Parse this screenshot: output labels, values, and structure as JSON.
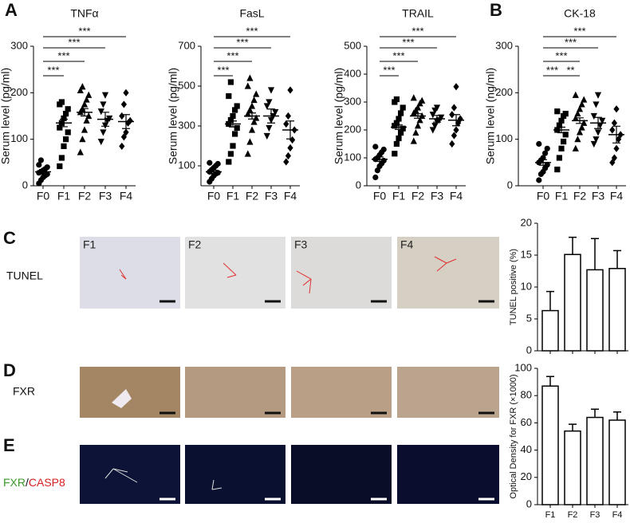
{
  "panel_labels": [
    "A",
    "B",
    "C",
    "D",
    "E"
  ],
  "image_rows": [
    {
      "label": "TUNEL",
      "tiles": [
        "F1",
        "F2",
        "F3",
        "F4"
      ]
    },
    {
      "label": "FXR"
    },
    {
      "label_parts": [
        "FXR",
        "/",
        "CASP8"
      ]
    }
  ],
  "chart_data": [
    {
      "type": "dot",
      "title": "TNFα",
      "ylabel": "Serum level (pg/ml)",
      "ylim": [
        0,
        300
      ],
      "yticks": [
        0,
        100,
        200,
        300
      ],
      "groups": [
        {
          "name": "F0",
          "marker": "circle",
          "points": [
            5,
            12,
            18,
            22,
            25,
            28,
            30,
            33,
            36,
            40,
            45,
            55
          ],
          "mean": 30,
          "sem": 5
        },
        {
          "name": "F1",
          "marker": "square",
          "points": [
            42,
            60,
            85,
            100,
            115,
            125,
            135,
            145,
            155,
            165,
            175,
            180
          ],
          "mean": 135,
          "sem": 8
        },
        {
          "name": "F2",
          "marker": "triangle-up",
          "points": [
            72,
            100,
            120,
            140,
            150,
            158,
            165,
            175,
            185,
            195,
            205,
            213
          ],
          "mean": 158,
          "sem": 8
        },
        {
          "name": "F3",
          "marker": "triangle-down",
          "points": [
            95,
            115,
            130,
            140,
            145,
            160,
            175,
            195
          ],
          "mean": 143,
          "sem": 15
        },
        {
          "name": "F4",
          "marker": "diamond",
          "points": [
            85,
            105,
            115,
            135,
            140,
            150,
            175,
            200
          ],
          "mean": 138,
          "sem": 15
        }
      ],
      "comparisons": [
        {
          "from": "F0",
          "to": "F1",
          "label": "***"
        },
        {
          "from": "F0",
          "to": "F2",
          "label": "***"
        },
        {
          "from": "F0",
          "to": "F3",
          "label": "***"
        },
        {
          "from": "F0",
          "to": "F4",
          "label": "***"
        }
      ]
    },
    {
      "type": "dot",
      "title": "FasL",
      "ylabel": "Serum level (pg/ml)",
      "ylim": [
        0,
        700
      ],
      "yticks": [
        100,
        300,
        500,
        700
      ],
      "groups": [
        {
          "name": "F0",
          "marker": "circle",
          "points": [
            20,
            35,
            50,
            60,
            65,
            70,
            80,
            90,
            100,
            110,
            115
          ],
          "mean": 70,
          "sem": 8
        },
        {
          "name": "F1",
          "marker": "square",
          "points": [
            120,
            160,
            200,
            260,
            290,
            310,
            330,
            350,
            380,
            400,
            450,
            520
          ],
          "mean": 310,
          "sem": 15
        },
        {
          "name": "F2",
          "marker": "triangle-up",
          "points": [
            160,
            220,
            280,
            320,
            340,
            360,
            380,
            400,
            430,
            460,
            500,
            540
          ],
          "mean": 350,
          "sem": 15
        },
        {
          "name": "F3",
          "marker": "triangle-down",
          "points": [
            250,
            290,
            330,
            350,
            370,
            400,
            420,
            480
          ],
          "mean": 350,
          "sem": 35
        },
        {
          "name": "F4",
          "marker": "diamond",
          "points": [
            120,
            150,
            190,
            230,
            280,
            310,
            350,
            480
          ],
          "mean": 280,
          "sem": 45
        }
      ],
      "comparisons": [
        {
          "from": "F0",
          "to": "F1",
          "label": "***"
        },
        {
          "from": "F0",
          "to": "F2",
          "label": "***"
        },
        {
          "from": "F0",
          "to": "F3",
          "label": "***"
        },
        {
          "from": "F0",
          "to": "F4",
          "label": "***"
        }
      ]
    },
    {
      "type": "dot",
      "title": "TRAIL",
      "ylabel": "Serum level (pg/ml)",
      "ylim": [
        0,
        500
      ],
      "yticks": [
        0,
        100,
        200,
        300,
        400,
        500
      ],
      "groups": [
        {
          "name": "F0",
          "marker": "circle",
          "points": [
            30,
            55,
            70,
            80,
            90,
            95,
            100,
            110,
            120,
            130,
            140
          ],
          "mean": 95,
          "sem": 8
        },
        {
          "name": "F1",
          "marker": "square",
          "points": [
            115,
            150,
            170,
            190,
            205,
            215,
            225,
            240,
            260,
            280,
            300,
            310
          ],
          "mean": 210,
          "sem": 8
        },
        {
          "name": "F2",
          "marker": "triangle-up",
          "points": [
            160,
            190,
            215,
            235,
            250,
            260,
            270,
            280,
            295,
            305,
            315
          ],
          "mean": 250,
          "sem": 8
        },
        {
          "name": "F3",
          "marker": "triangle-down",
          "points": [
            200,
            215,
            230,
            235,
            245,
            255,
            270,
            280
          ],
          "mean": 240,
          "sem": 12
        },
        {
          "name": "F4",
          "marker": "diamond",
          "points": [
            150,
            180,
            200,
            225,
            240,
            255,
            280,
            355
          ],
          "mean": 235,
          "sem": 20
        }
      ],
      "comparisons": [
        {
          "from": "F0",
          "to": "F1",
          "label": "***"
        },
        {
          "from": "F0",
          "to": "F2",
          "label": "***"
        },
        {
          "from": "F0",
          "to": "F3",
          "label": "***"
        },
        {
          "from": "F0",
          "to": "F4",
          "label": "***"
        }
      ]
    },
    {
      "type": "dot",
      "title": "CK-18",
      "ylabel": "Serum level (ng/ml)",
      "ylim": [
        0,
        300
      ],
      "yticks": [
        0,
        100,
        200,
        300
      ],
      "groups": [
        {
          "name": "F0",
          "marker": "circle",
          "points": [
            12,
            25,
            30,
            38,
            45,
            50,
            55,
            60,
            70,
            80,
            90
          ],
          "mean": 50,
          "sem": 6
        },
        {
          "name": "F1",
          "marker": "square",
          "points": [
            35,
            60,
            80,
            95,
            110,
            120,
            130,
            140,
            150,
            155,
            160
          ],
          "mean": 120,
          "sem": 6
        },
        {
          "name": "F2",
          "marker": "triangle-up",
          "points": [
            80,
            100,
            115,
            125,
            135,
            145,
            155,
            165,
            175,
            185,
            195
          ],
          "mean": 140,
          "sem": 6
        },
        {
          "name": "F3",
          "marker": "triangle-down",
          "points": [
            90,
            100,
            115,
            130,
            140,
            150,
            175,
            195
          ],
          "mean": 135,
          "sem": 12
        },
        {
          "name": "F4",
          "marker": "diamond",
          "points": [
            50,
            60,
            80,
            100,
            110,
            120,
            135,
            165
          ],
          "mean": 110,
          "sem": 18
        }
      ],
      "comparisons": [
        {
          "from": "F0",
          "to": "F1",
          "label": "***"
        },
        {
          "from": "F1",
          "to": "F2",
          "label": "**"
        },
        {
          "from": "F0",
          "to": "F2",
          "label": "***"
        },
        {
          "from": "F0",
          "to": "F3",
          "label": "***"
        },
        {
          "from": "F0",
          "to": "F4",
          "label": "***"
        }
      ]
    },
    {
      "type": "bar",
      "ylabel": "TUNEL positive (%)",
      "ylim": [
        0,
        20
      ],
      "yticks": [
        0,
        5,
        10,
        15,
        20
      ],
      "categories": [
        null,
        null,
        null,
        null
      ],
      "values": [
        6.3,
        15.1,
        12.7,
        12.9
      ],
      "errors": [
        3.0,
        2.7,
        4.9,
        2.8
      ],
      "color": "#ffffff"
    },
    {
      "type": "bar",
      "ylabel": "Optical Density for FXR (×1000)",
      "ylim": [
        0,
        100
      ],
      "yticks": [
        0,
        20,
        40,
        60,
        80,
        100
      ],
      "categories": [
        "F1",
        "F2",
        "F3",
        "F4"
      ],
      "values": [
        87,
        54,
        64,
        62
      ],
      "errors": [
        7,
        5,
        6,
        6
      ],
      "color": "#ffffff"
    }
  ]
}
